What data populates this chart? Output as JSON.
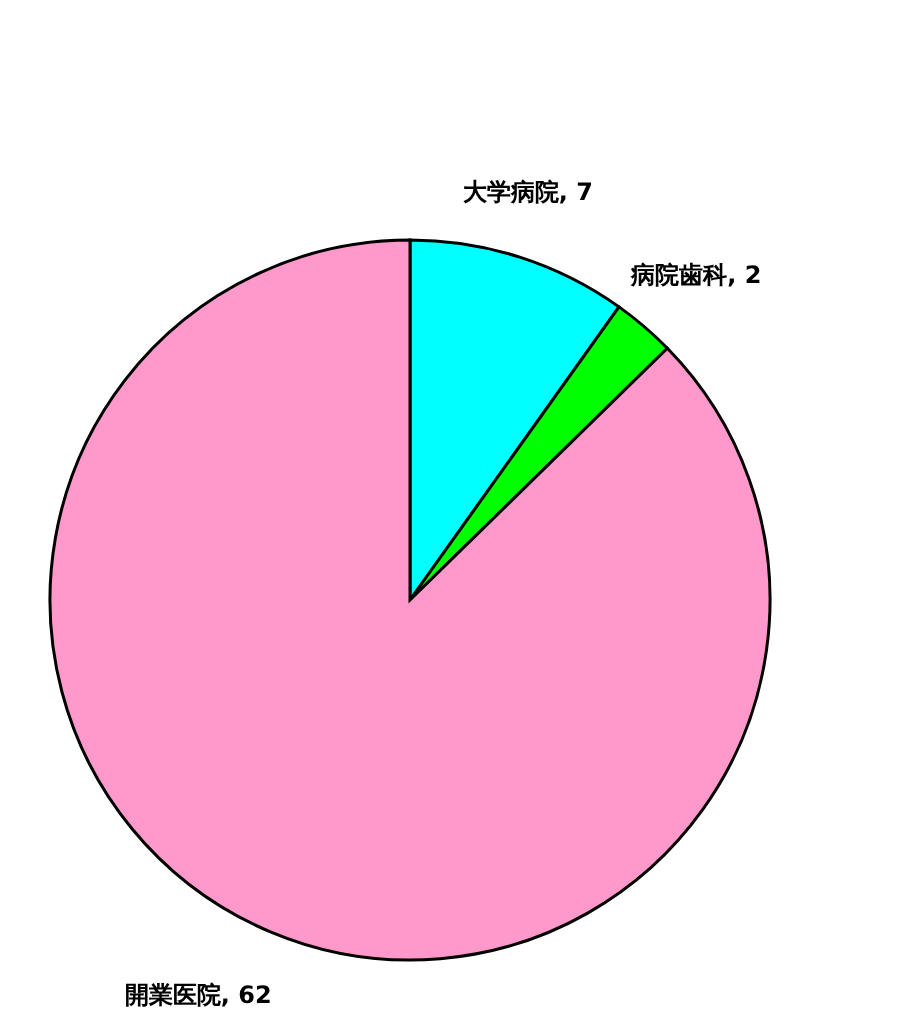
{
  "chart_data": {
    "type": "pie",
    "categories": [
      "大学病院",
      "病院歯科",
      "開業医院"
    ],
    "values": [
      7,
      2,
      62
    ],
    "colors": [
      "#00ffff",
      "#00ff00",
      "#ff99cc"
    ],
    "value_labels": [
      ", 7",
      ", 2",
      ", 62"
    ]
  }
}
